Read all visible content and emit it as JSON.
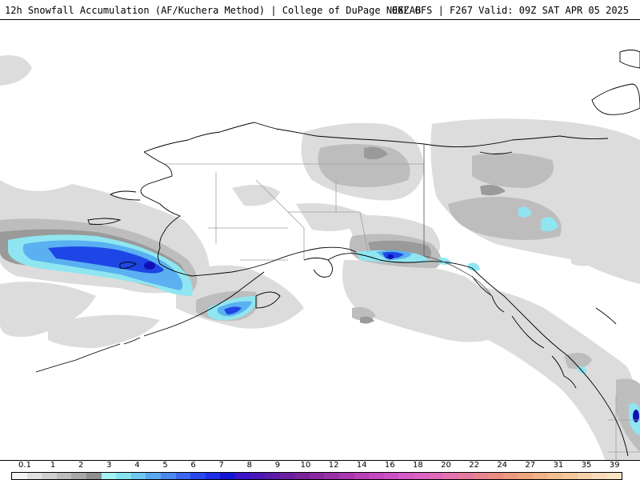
{
  "header": {
    "title": "12h Snowfall Accumulation (AF/Kuchera Method) | College of DuPage NEXLAB",
    "run_info": "06Z GFS | F267 Valid: 09Z SAT APR 05 2025"
  },
  "legend": {
    "labels": [
      "0.1",
      "1",
      "2",
      "3",
      "4",
      "5",
      "6",
      "7",
      "8",
      "9",
      "10",
      "12",
      "14",
      "16",
      "18",
      "20",
      "22",
      "24",
      "27",
      "31",
      "35",
      "39"
    ],
    "colors": [
      "#f4f4f4",
      "#e2e2e2",
      "#cfcfcf",
      "#bcbcbc",
      "#a8a8a8",
      "#8f8f8f",
      "#a4f2f2",
      "#86e4ee",
      "#6fc8f2",
      "#5aa8f2",
      "#4a88f0",
      "#3a68ee",
      "#2a48ec",
      "#1e2ee8",
      "#1414d8",
      "#3a14c8",
      "#4a18b8",
      "#5a1ca8",
      "#6a20a0",
      "#7a2498",
      "#8a2aa0",
      "#9a30a8",
      "#aa38b0",
      "#b840b8",
      "#c448c0",
      "#cc52c4",
      "#d45cc8",
      "#dc62c0",
      "#e06ab8",
      "#e472ae",
      "#e67aa0",
      "#e88490",
      "#ea8e84",
      "#ec9a80",
      "#eea67e",
      "#f0b286",
      "#f2be90",
      "#f4c89c",
      "#f6d2aa",
      "#f8dcb8",
      "#fae4c4"
    ]
  },
  "map": {
    "region": "Alaska",
    "colors": {
      "light_gray": "#dcdcdc",
      "mid_gray": "#bdbdbd",
      "dark_gray": "#9a9a9a",
      "cyan": "#8fe6f0",
      "light_blue": "#5ab0f0",
      "blue": "#1e46e6",
      "deep_blue": "#1010b4",
      "coast": "#000000",
      "border": "#a0a0a0"
    }
  }
}
